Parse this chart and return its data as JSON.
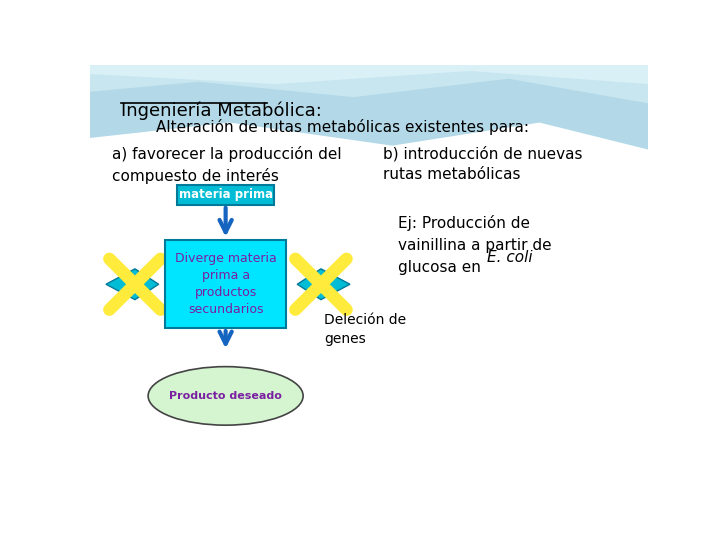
{
  "title": "Ingeniería Metabólica:",
  "subtitle": "Alteración de rutas metabólicas existentes para:",
  "col_a_title": "a) favorecer la producción del\ncompuesto de interés",
  "col_b_title": "b) introducción de nuevas\nrutas metabólicas",
  "box_top_text": "materia prima",
  "box_center_text": "Diverge materia\nprima a\nproductos\nsecundarios",
  "ellipse_text": "Producto deseado",
  "deletion_label": "Deleción de\ngenes",
  "example_text": "Ej: Producción de\nvainillina a partir de\nglucosa en ",
  "example_italic": "E. coli",
  "box_top_color": "#00bcd4",
  "box_center_color": "#00e5ff",
  "ellipse_color": "#d4f5d0",
  "arrow_color": "#1565c0",
  "x_color": "#ffeb3b",
  "font_color_dark": "#000000",
  "font_color_box": "#7b1fa2",
  "font_size_title": 13,
  "font_size_body": 11,
  "font_size_box": 9
}
